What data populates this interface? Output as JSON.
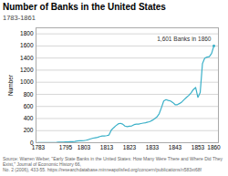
{
  "chart_data": {
    "type": "line",
    "title": "Number of Banks in the United States",
    "subtitle": "1783-1861",
    "ylabel": "Number",
    "annotation": "1,601 Banks in 1860",
    "source": "Source: Warren Weber, \"Early State Banks in the United States: How Many Were There and Where Did They Exist,\" Journal of Economic History 66,\nNo. 2 (2006), 433-55. https://researchdatabase.minneapolisfed.org/concern/publications/n583xt68f",
    "color": "#3ab0c8",
    "x": [
      1782,
      1783,
      1784,
      1785,
      1786,
      1787,
      1788,
      1789,
      1790,
      1791,
      1792,
      1793,
      1794,
      1795,
      1796,
      1797,
      1798,
      1799,
      1800,
      1801,
      1802,
      1803,
      1804,
      1805,
      1806,
      1807,
      1808,
      1809,
      1810,
      1811,
      1812,
      1813,
      1814,
      1815,
      1816,
      1817,
      1818,
      1819,
      1820,
      1821,
      1822,
      1823,
      1824,
      1825,
      1826,
      1827,
      1828,
      1829,
      1830,
      1831,
      1832,
      1833,
      1834,
      1835,
      1836,
      1837,
      1838,
      1839,
      1840,
      1841,
      1842,
      1843,
      1844,
      1845,
      1846,
      1847,
      1848,
      1849,
      1850,
      1851,
      1852,
      1853,
      1854,
      1855,
      1856,
      1857,
      1858,
      1859,
      1860
    ],
    "values": [
      0,
      3,
      3,
      3,
      3,
      3,
      3,
      3,
      4,
      5,
      8,
      9,
      10,
      13,
      15,
      17,
      18,
      22,
      28,
      31,
      33,
      34,
      41,
      52,
      64,
      75,
      82,
      88,
      102,
      112,
      110,
      117,
      127,
      208,
      246,
      281,
      310,
      320,
      307,
      275,
      267,
      274,
      278,
      299,
      306,
      308,
      317,
      324,
      330,
      340,
      351,
      371,
      395,
      425,
      478,
      579,
      690,
      712,
      700,
      690,
      665,
      629,
      629,
      650,
      676,
      715,
      751,
      782,
      824,
      879,
      913,
      750,
      830,
      1307,
      1398,
      1416,
      1422,
      1476,
      1601
    ],
    "xlim": [
      1782,
      1862
    ],
    "ylim": [
      0,
      1900
    ],
    "xticks": [
      1783,
      1795,
      1803,
      1813,
      1823,
      1833,
      1843,
      1853,
      1860
    ],
    "yticks": [
      0,
      200,
      400,
      600,
      800,
      1000,
      1200,
      1400,
      1600,
      1800
    ],
    "grid": true
  }
}
